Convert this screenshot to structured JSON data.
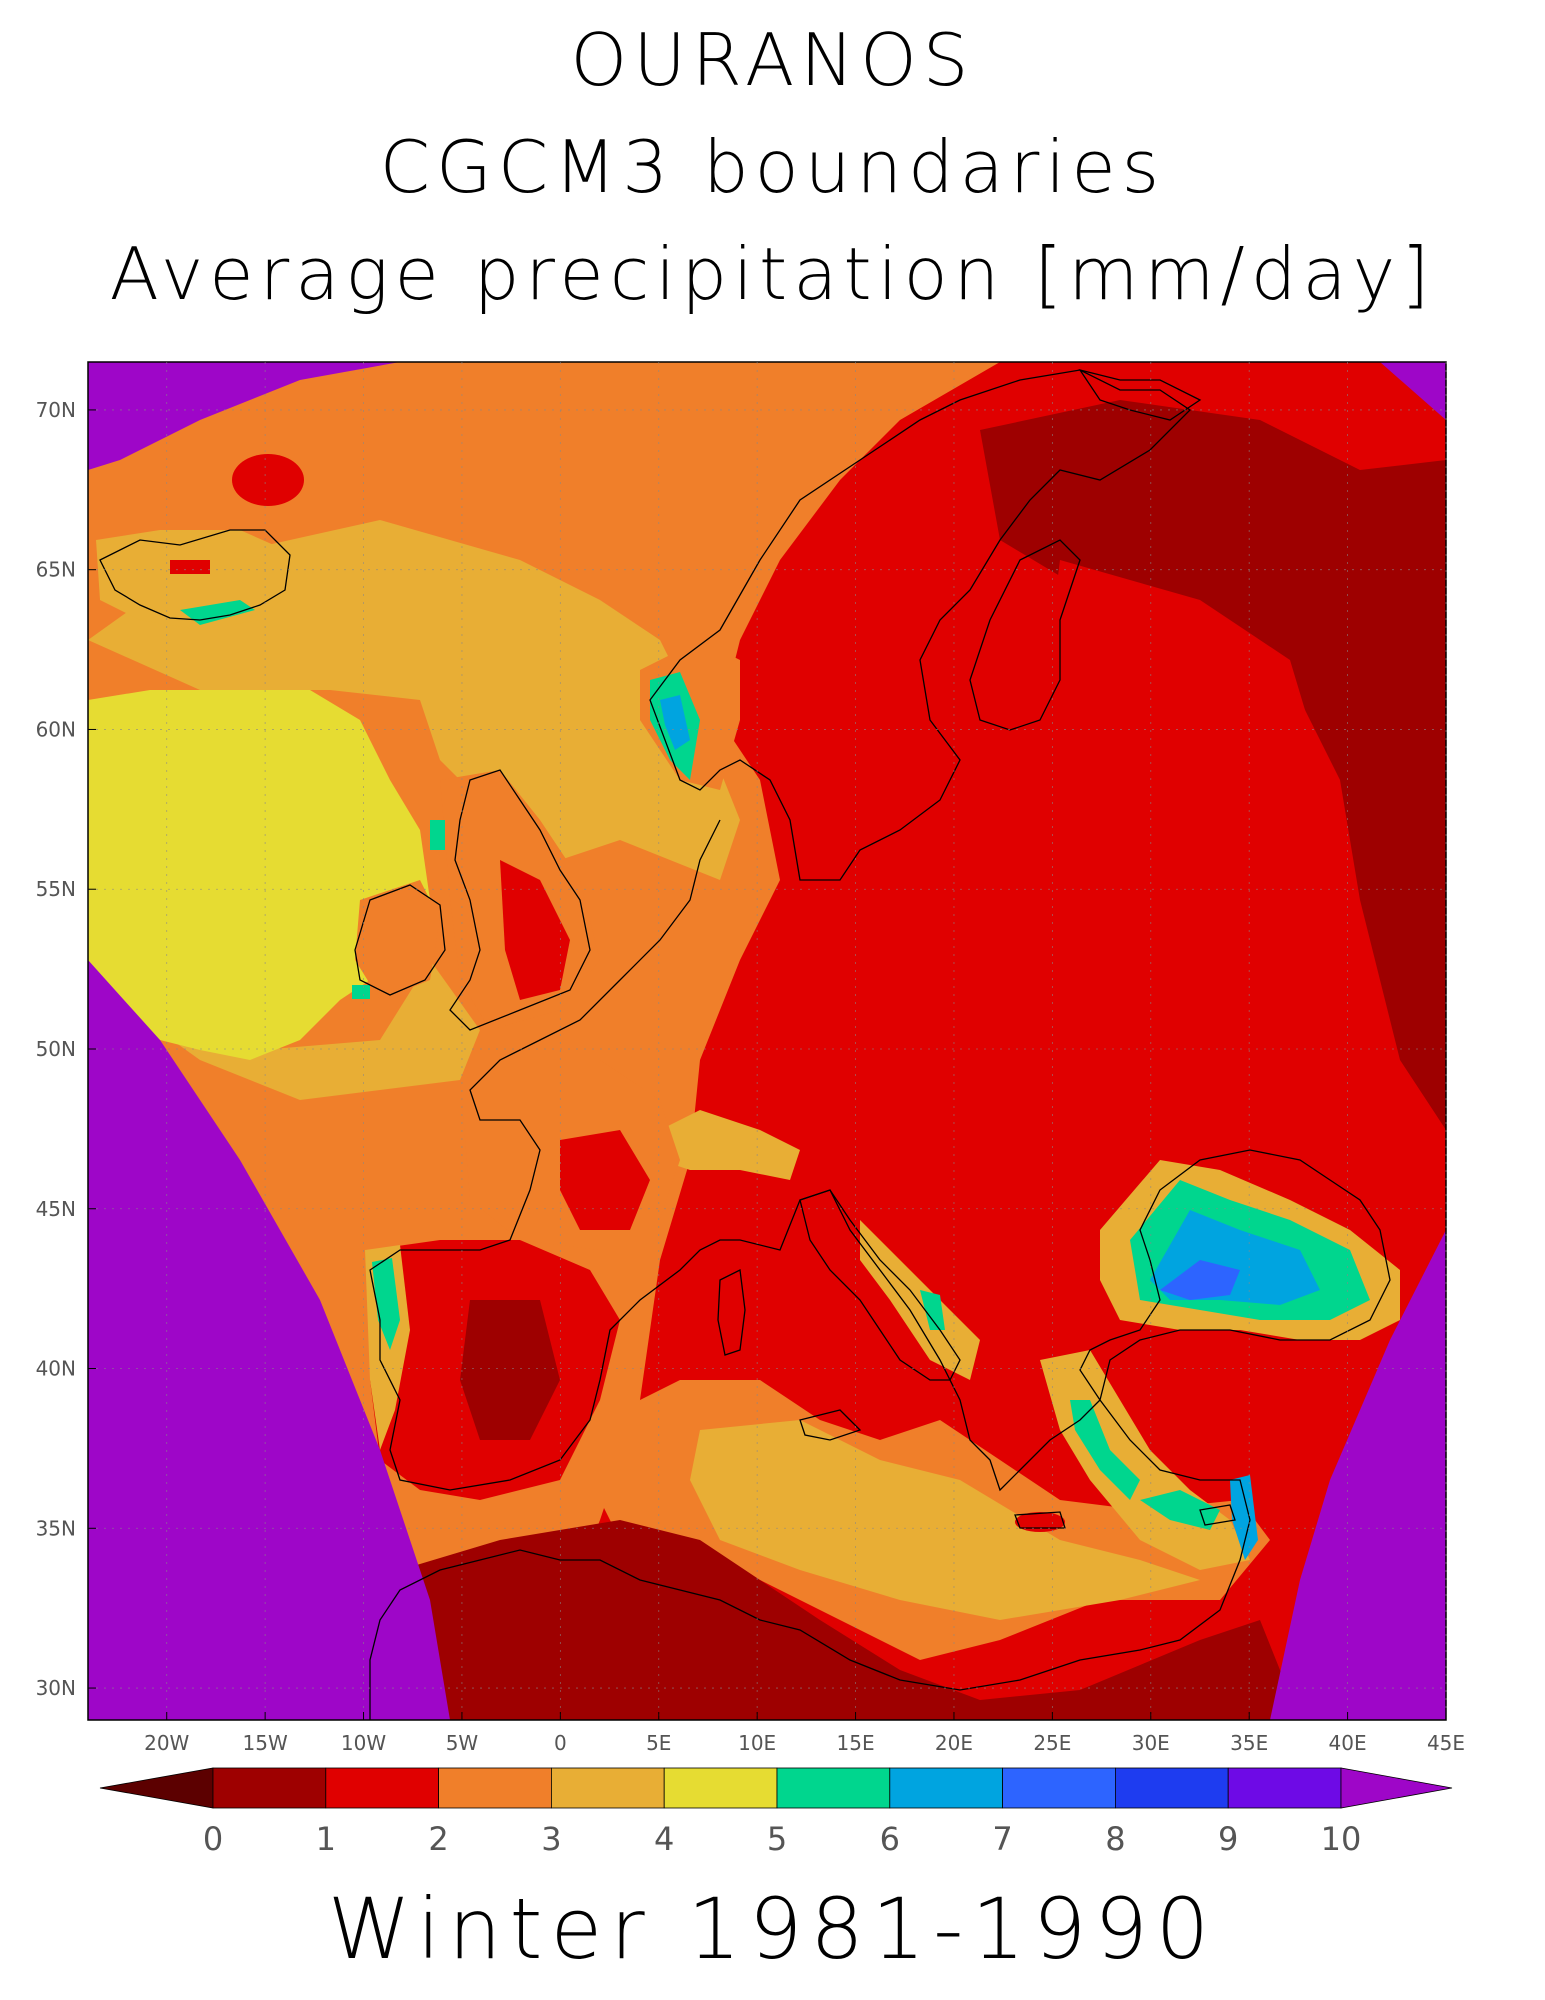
{
  "titles": {
    "line1": "OURANOS",
    "line2": "CGCM3 boundaries",
    "line3": "Average precipitation [mm/day]",
    "bottom": "Winter 1981-1990"
  },
  "map": {
    "lon_range": [
      -24,
      45
    ],
    "lat_range": [
      29,
      71.5
    ],
    "lon_ticks": [
      "20W",
      "15W",
      "10W",
      "5W",
      "0",
      "5E",
      "10E",
      "15E",
      "20E",
      "25E",
      "30E",
      "35E",
      "40E",
      "45E"
    ],
    "lat_ticks": [
      "30N",
      "35N",
      "40N",
      "45N",
      "50N",
      "55N",
      "60N",
      "65N",
      "70N"
    ],
    "outside_domain_color": "#9e06c8"
  },
  "colorbar": {
    "labels": [
      "0",
      "1",
      "2",
      "3",
      "4",
      "5",
      "6",
      "7",
      "8",
      "9",
      "10"
    ],
    "colors": [
      "#5c0000",
      "#9e0000",
      "#e00000",
      "#f07f2a",
      "#e8ae35",
      "#e6dc32",
      "#00d68e",
      "#00a4e0",
      "#2d64ff",
      "#1e3cf0",
      "#6e0ae6",
      "#9e06c8"
    ]
  }
}
